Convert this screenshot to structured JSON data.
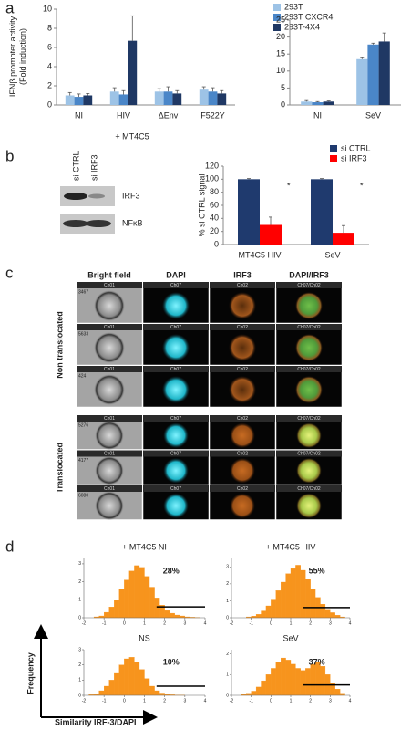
{
  "panel_labels": [
    "a",
    "b",
    "c",
    "d"
  ],
  "chart_data": [
    {
      "type": "bar",
      "ylabel": [
        "IFNβ promoter activity",
        "(Fold induction)"
      ],
      "categories": [
        "NI",
        "HIV",
        "ΔEnv",
        "F522Y"
      ],
      "group_label": "+ MT4C5",
      "ylim": [
        0,
        10
      ],
      "yticks": [
        0,
        2,
        4,
        6,
        8,
        10
      ],
      "legend": true,
      "series": [
        {
          "name": "293T",
          "color": "#9dc3e6",
          "values": [
            1.0,
            1.4,
            1.4,
            1.6
          ],
          "errors": [
            0.3,
            0.4,
            0.3,
            0.3
          ]
        },
        {
          "name": "293T CXCR4",
          "color": "#4a86c8",
          "values": [
            0.85,
            1.1,
            1.4,
            1.4
          ],
          "errors": [
            0.3,
            0.4,
            0.5,
            0.4
          ]
        },
        {
          "name": "293T-4X4",
          "color": "#1f3864",
          "values": [
            1.0,
            6.7,
            1.2,
            1.2
          ],
          "errors": [
            0.2,
            2.6,
            0.3,
            0.3
          ]
        }
      ]
    },
    {
      "type": "bar",
      "categories": [
        "NI",
        "SeV"
      ],
      "ylim": [
        0,
        25
      ],
      "yticks": [
        0,
        5,
        10,
        15,
        20,
        25
      ],
      "series": [
        {
          "color": "#9dc3e6",
          "values": [
            1.0,
            13.5
          ],
          "errors": [
            0.3,
            0.4
          ]
        },
        {
          "color": "#4a86c8",
          "values": [
            0.8,
            17.8
          ],
          "errors": [
            0.2,
            0.4
          ]
        },
        {
          "color": "#1f3864",
          "values": [
            1.0,
            18.7
          ],
          "errors": [
            0.2,
            2.5
          ]
        }
      ]
    },
    {
      "type": "bar",
      "ylabel": "% si CTRL signal",
      "categories": [
        "MT4C5 HIV",
        "SeV"
      ],
      "ylim": [
        0,
        120
      ],
      "yticks": [
        0,
        20,
        40,
        60,
        80,
        100,
        120
      ],
      "legend": true,
      "annotations": [
        "*",
        "*"
      ],
      "series": [
        {
          "name": "si CTRL",
          "color": "#1f3a6e",
          "values": [
            100,
            100
          ],
          "errors": [
            1,
            1
          ]
        },
        {
          "name": "si IRF3",
          "color": "#ff0000",
          "values": [
            30,
            18
          ],
          "errors": [
            12,
            11
          ]
        }
      ]
    },
    {
      "type": "histogram",
      "title": "+ MT4C5 NI",
      "annotation": "28%",
      "color": "#f7941d",
      "bins": [
        -2,
        -1.75,
        -1.5,
        -1.25,
        -1,
        -0.75,
        -0.5,
        -0.25,
        0,
        0.25,
        0.5,
        0.75,
        1,
        1.25,
        1.5,
        1.75,
        2,
        2.25,
        2.5,
        2.75,
        3,
        3.25,
        3.5,
        3.75,
        4
      ],
      "counts": [
        0,
        0,
        0.05,
        0.1,
        0.3,
        0.6,
        1.0,
        1.6,
        2.1,
        2.6,
        2.9,
        2.8,
        2.3,
        1.7,
        1.1,
        0.7,
        0.4,
        0.25,
        0.15,
        0.1,
        0.05,
        0.03,
        0.01,
        0
      ],
      "xlim": [
        -2,
        4
      ],
      "xticks": [
        -2,
        -1,
        0,
        1,
        2,
        3,
        4
      ],
      "ylim": [
        0,
        3.3
      ],
      "yticks": [
        0,
        1,
        2,
        3
      ],
      "gate_x": [
        1.6,
        4
      ],
      "gate_y": 0.6
    },
    {
      "type": "histogram",
      "title": "+ MT4C5 HIV",
      "annotation": "55%",
      "color": "#f7941d",
      "bins": [
        -2,
        -1.75,
        -1.5,
        -1.25,
        -1,
        -0.75,
        -0.5,
        -0.25,
        0,
        0.25,
        0.5,
        0.75,
        1,
        1.25,
        1.5,
        1.75,
        2,
        2.25,
        2.5,
        2.75,
        3,
        3.25,
        3.5,
        3.75,
        4
      ],
      "counts": [
        0,
        0,
        0,
        0.05,
        0.1,
        0.2,
        0.4,
        0.7,
        1.1,
        1.6,
        2.1,
        2.6,
        2.9,
        3.1,
        2.8,
        2.3,
        1.7,
        1.2,
        0.8,
        0.5,
        0.3,
        0.15,
        0.05,
        0
      ],
      "xlim": [
        -2,
        4
      ],
      "xticks": [
        -2,
        -1,
        0,
        1,
        2,
        3,
        4
      ],
      "ylim": [
        0,
        3.5
      ],
      "yticks": [
        0,
        1,
        2,
        3
      ],
      "gate_x": [
        1.6,
        4
      ],
      "gate_y": 0.6
    },
    {
      "type": "histogram",
      "title": "NS",
      "annotation": "10%",
      "color": "#f7941d",
      "bins": [
        -2,
        -1.75,
        -1.5,
        -1.25,
        -1,
        -0.75,
        -0.5,
        -0.25,
        0,
        0.25,
        0.5,
        0.75,
        1,
        1.25,
        1.5,
        1.75,
        2,
        2.25,
        2.5,
        2.75,
        3,
        3.25,
        3.5,
        3.75,
        4
      ],
      "counts": [
        0,
        0.05,
        0.1,
        0.3,
        0.6,
        1.0,
        1.5,
        2.0,
        2.4,
        2.5,
        2.2,
        1.7,
        1.1,
        0.6,
        0.3,
        0.15,
        0.08,
        0.04,
        0.02,
        0.01,
        0,
        0,
        0,
        0
      ],
      "xlim": [
        -2,
        4
      ],
      "xticks": [
        -2,
        -1,
        0,
        1,
        2,
        3,
        4
      ],
      "ylim": [
        0,
        3
      ],
      "yticks": [
        0,
        1,
        2,
        3
      ],
      "gate_x": [
        1.6,
        4
      ],
      "gate_y": 0.6
    },
    {
      "type": "histogram",
      "title": "SeV",
      "annotation": "37%",
      "color": "#f7941d",
      "bins": [
        -2,
        -1.75,
        -1.5,
        -1.25,
        -1,
        -0.75,
        -0.5,
        -0.25,
        0,
        0.25,
        0.5,
        0.75,
        1,
        1.25,
        1.5,
        1.75,
        2,
        2.25,
        2.5,
        2.75,
        3,
        3.25,
        3.5,
        3.75,
        4
      ],
      "counts": [
        0,
        0,
        0.05,
        0.1,
        0.2,
        0.4,
        0.7,
        1.0,
        1.3,
        1.6,
        1.8,
        1.7,
        1.5,
        1.3,
        1.2,
        1.3,
        1.5,
        1.6,
        1.4,
        1.0,
        0.6,
        0.3,
        0.1,
        0
      ],
      "xlim": [
        -2,
        4
      ],
      "xticks": [
        -2,
        -1,
        0,
        1,
        2,
        3,
        4
      ],
      "ylim": [
        0,
        2.2
      ],
      "yticks": [
        0,
        1,
        2
      ],
      "gate_x": [
        1.6,
        4
      ],
      "gate_y": 0.5
    }
  ],
  "blot": {
    "lanes": [
      "si CTRL",
      "si IRF3"
    ],
    "bands": [
      "IRF3",
      "NFκB"
    ]
  },
  "microscopy": {
    "columns": [
      "Bright field",
      "DAPI",
      "IRF3",
      "DAPI/IRF3"
    ],
    "channel_tags": [
      "Ch01",
      "Ch07",
      "Ch02",
      "Ch07/Ch02"
    ],
    "groups": [
      {
        "label": "Non translocated",
        "rows": [
          "3467",
          "5633",
          "424"
        ]
      },
      {
        "label": "Translocated",
        "rows": [
          "5276",
          "4177",
          "6080"
        ]
      }
    ]
  },
  "panel_d": {
    "y_label": "Frequency",
    "x_label": "Similarity IRF-3/DAPI"
  }
}
